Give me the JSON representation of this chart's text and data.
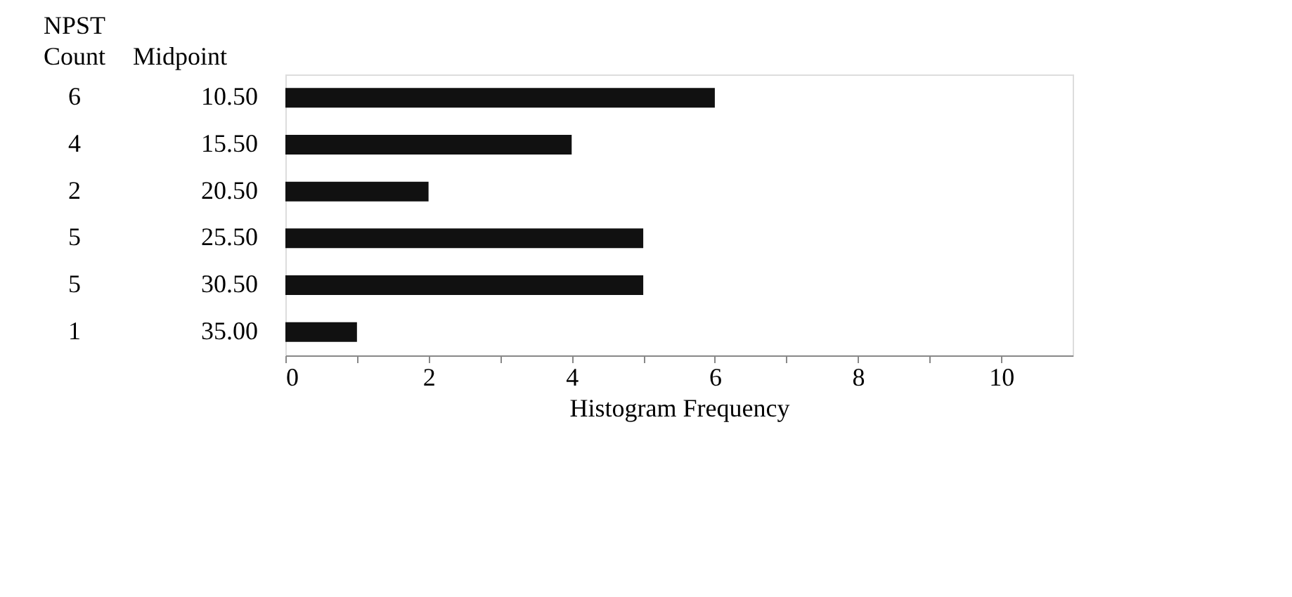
{
  "chart_data": {
    "type": "bar",
    "orientation": "horizontal",
    "title": "NPST",
    "categories": [
      "10.50",
      "15.50",
      "20.50",
      "25.50",
      "30.50",
      "35.00"
    ],
    "values": [
      6,
      4,
      2,
      5,
      5,
      1
    ],
    "data_labels": true,
    "annotations": [
      "Count",
      "Midpoint"
    ],
    "xlabel": "Histogram Frequency",
    "xlim": [
      0,
      11
    ],
    "xticks": [
      0,
      {
        "value": 1,
        "label": null
      },
      2,
      {
        "value": 3,
        "label": null
      },
      4,
      {
        "value": 5,
        "label": null
      },
      6,
      {
        "value": 7,
        "label": null
      },
      8,
      {
        "value": 9,
        "label": null
      },
      10
    ],
    "color": "#111111",
    "grid": false
  }
}
